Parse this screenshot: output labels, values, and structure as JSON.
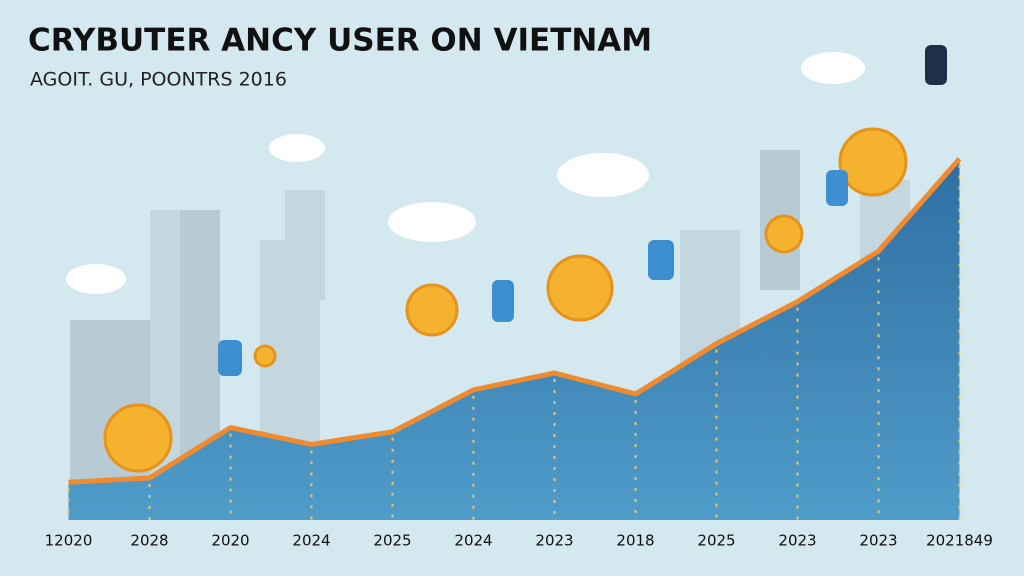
{
  "chart_data": {
    "type": "area",
    "title": "CRYBUTER ANCY USER ON VIETNAM",
    "subtitle": "AGOIT. GU, POONTRS 2016",
    "categories": [
      "12020",
      "2028",
      "2020",
      "2024",
      "2025",
      "2024",
      "2023",
      "2018",
      "2025",
      "2023",
      "2023",
      "2021849"
    ],
    "values": [
      9,
      10,
      22,
      18,
      21,
      31,
      35,
      30,
      42,
      52,
      64,
      86
    ],
    "ylim": [
      0,
      100
    ],
    "color": "#2f6fa3",
    "line_color": "#f08a2e"
  }
}
